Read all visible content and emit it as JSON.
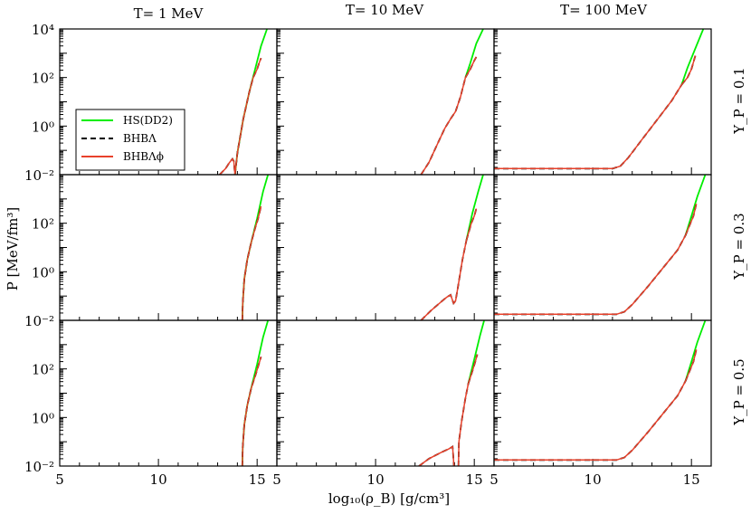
{
  "figure": {
    "xlabel": "log₁₀(ρ_B) [g/cm³]",
    "ylabel": "P [MeV/fm³]"
  },
  "chart_data": {
    "type": "line",
    "layout": "3x3 grid",
    "column_titles": [
      "T= 1 MeV",
      "T= 10 MeV",
      "T= 100 MeV"
    ],
    "row_labels": [
      "Y_P = 0.1",
      "Y_P = 0.3",
      "Y_P = 0.5"
    ],
    "xlim": [
      5,
      16
    ],
    "xticks": [
      5,
      10,
      15
    ],
    "yscale": "log",
    "ylim_log10": [
      -2,
      4
    ],
    "ytick_labels": [
      "10⁻²",
      "10⁰",
      "10²",
      "10⁴"
    ],
    "legend": {
      "placement": "upper-left of top-left panel",
      "entries": [
        {
          "name": "HS(DD2)",
          "color": "#00ee00",
          "dash": "solid"
        },
        {
          "name": "BHBΛ",
          "color": "#000000",
          "dash": "dashed"
        },
        {
          "name": "BHBΛϕ",
          "color": "#e8412b",
          "dash": "solid"
        }
      ]
    },
    "panels": [
      {
        "row": 0,
        "col": 0,
        "title": "T= 1 MeV, Y_P = 0.1",
        "common_log10P": [
          [
            13.1,
            -2.0
          ],
          [
            13.4,
            -1.75
          ],
          [
            13.6,
            -1.5
          ],
          [
            13.75,
            -1.35
          ],
          [
            13.82,
            -1.45
          ],
          [
            13.88,
            -2.0
          ]
        ],
        "hs_log10P": [
          [
            13.88,
            -2.0
          ],
          [
            14.0,
            -1.1
          ],
          [
            14.3,
            0.3
          ],
          [
            14.6,
            1.4
          ],
          [
            14.9,
            2.35
          ],
          [
            15.2,
            3.3
          ],
          [
            15.5,
            4.0
          ]
        ],
        "bhb_log10P": [
          [
            13.88,
            -2.0
          ],
          [
            14.0,
            -1.1
          ],
          [
            14.3,
            0.3
          ],
          [
            14.6,
            1.4
          ],
          [
            14.8,
            2.0
          ],
          [
            15.0,
            2.35
          ],
          [
            15.1,
            2.6
          ],
          [
            15.2,
            2.8
          ]
        ]
      },
      {
        "row": 0,
        "col": 1,
        "title": "T= 10 MeV, Y_P = 0.1",
        "common_log10P": [
          [
            12.3,
            -2.0
          ],
          [
            12.7,
            -1.5
          ],
          [
            13.1,
            -0.8
          ],
          [
            13.5,
            -0.1
          ],
          [
            13.8,
            0.3
          ],
          [
            14.05,
            0.6
          ],
          [
            14.3,
            1.2
          ],
          [
            14.55,
            2.0
          ]
        ],
        "hs_log10P": [
          [
            14.55,
            2.0
          ],
          [
            14.8,
            2.6
          ],
          [
            15.1,
            3.4
          ],
          [
            15.45,
            4.0
          ]
        ],
        "bhb_log10P": [
          [
            14.55,
            2.0
          ],
          [
            14.8,
            2.35
          ],
          [
            15.0,
            2.7
          ],
          [
            15.1,
            2.85
          ]
        ]
      },
      {
        "row": 0,
        "col": 2,
        "title": "T= 100 MeV, Y_P = 0.1",
        "common_log10P": [
          [
            5,
            -1.75
          ],
          [
            11.0,
            -1.75
          ],
          [
            11.4,
            -1.65
          ],
          [
            11.8,
            -1.3
          ],
          [
            12.5,
            -0.55
          ],
          [
            13.3,
            0.3
          ],
          [
            14.0,
            1.05
          ],
          [
            14.5,
            1.7
          ]
        ],
        "hs_log10P": [
          [
            14.5,
            1.7
          ],
          [
            14.8,
            2.4
          ],
          [
            15.2,
            3.2
          ],
          [
            15.6,
            4.0
          ]
        ],
        "bhb_log10P": [
          [
            14.5,
            1.7
          ],
          [
            14.8,
            2.0
          ],
          [
            15.0,
            2.35
          ],
          [
            15.2,
            2.9
          ]
        ]
      },
      {
        "row": 1,
        "col": 0,
        "title": "T= 1 MeV, Y_P = 0.3",
        "common_log10P": [],
        "hs_log10P": [
          [
            14.25,
            -2.0
          ],
          [
            14.27,
            -1.3
          ],
          [
            14.35,
            -0.3
          ],
          [
            14.5,
            0.5
          ],
          [
            14.7,
            1.2
          ],
          [
            15.0,
            2.2
          ],
          [
            15.3,
            3.3
          ],
          [
            15.55,
            4.0
          ]
        ],
        "bhb_log10P": [
          [
            14.25,
            -2.0
          ],
          [
            14.27,
            -1.3
          ],
          [
            14.35,
            -0.3
          ],
          [
            14.5,
            0.5
          ],
          [
            14.7,
            1.2
          ],
          [
            14.9,
            1.8
          ],
          [
            15.05,
            2.2
          ],
          [
            15.2,
            2.7
          ]
        ]
      },
      {
        "row": 1,
        "col": 1,
        "title": "T= 10 MeV, Y_P = 0.3",
        "common_log10P": [
          [
            12.3,
            -2.0
          ],
          [
            12.8,
            -1.6
          ],
          [
            13.3,
            -1.25
          ],
          [
            13.6,
            -1.05
          ],
          [
            13.8,
            -0.95
          ],
          [
            13.95,
            -1.3
          ],
          [
            14.05,
            -1.2
          ],
          [
            14.2,
            -0.5
          ],
          [
            14.4,
            0.5
          ],
          [
            14.6,
            1.3
          ]
        ],
        "hs_log10P": [
          [
            14.6,
            1.3
          ],
          [
            14.9,
            2.4
          ],
          [
            15.2,
            3.3
          ],
          [
            15.45,
            4.0
          ]
        ],
        "bhb_log10P": [
          [
            14.6,
            1.3
          ],
          [
            14.85,
            2.0
          ],
          [
            15.0,
            2.3
          ],
          [
            15.1,
            2.6
          ]
        ]
      },
      {
        "row": 1,
        "col": 2,
        "title": "T= 100 MeV, Y_P = 0.3",
        "common_log10P": [
          [
            5,
            -1.75
          ],
          [
            11.2,
            -1.75
          ],
          [
            11.6,
            -1.65
          ],
          [
            12.0,
            -1.35
          ],
          [
            12.8,
            -0.6
          ],
          [
            13.6,
            0.2
          ],
          [
            14.3,
            0.9
          ],
          [
            14.7,
            1.5
          ]
        ],
        "hs_log10P": [
          [
            14.7,
            1.5
          ],
          [
            15.0,
            2.3
          ],
          [
            15.3,
            3.1
          ],
          [
            15.7,
            4.0
          ]
        ],
        "bhb_log10P": [
          [
            14.7,
            1.5
          ],
          [
            14.9,
            1.9
          ],
          [
            15.1,
            2.3
          ],
          [
            15.25,
            2.8
          ]
        ]
      },
      {
        "row": 2,
        "col": 0,
        "title": "T= 1 MeV, Y_P = 0.5",
        "common_log10P": [],
        "hs_log10P": [
          [
            14.25,
            -2.0
          ],
          [
            14.27,
            -1.2
          ],
          [
            14.35,
            -0.3
          ],
          [
            14.5,
            0.5
          ],
          [
            14.7,
            1.2
          ],
          [
            15.0,
            2.2
          ],
          [
            15.3,
            3.3
          ],
          [
            15.55,
            4.0
          ]
        ],
        "bhb_log10P": [
          [
            14.25,
            -2.0
          ],
          [
            14.27,
            -1.2
          ],
          [
            14.35,
            -0.3
          ],
          [
            14.5,
            0.5
          ],
          [
            14.7,
            1.2
          ],
          [
            14.9,
            1.7
          ],
          [
            15.05,
            2.1
          ],
          [
            15.2,
            2.5
          ]
        ]
      },
      {
        "row": 2,
        "col": 1,
        "title": "T= 10 MeV, Y_P = 0.5",
        "common_log10P": [
          [
            12.2,
            -2.0
          ],
          [
            12.7,
            -1.7
          ],
          [
            13.3,
            -1.45
          ],
          [
            13.7,
            -1.3
          ],
          [
            13.9,
            -1.2
          ],
          [
            13.97,
            -2.0
          ],
          [
            null,
            null
          ],
          [
            14.2,
            -2.0
          ],
          [
            14.22,
            -1.0
          ],
          [
            14.35,
            -0.2
          ],
          [
            14.55,
            0.8
          ],
          [
            14.7,
            1.4
          ]
        ],
        "hs_log10P": [
          [
            14.7,
            1.4
          ],
          [
            15.0,
            2.4
          ],
          [
            15.3,
            3.4
          ],
          [
            15.5,
            4.0
          ]
        ],
        "bhb_log10P": [
          [
            14.7,
            1.4
          ],
          [
            14.9,
            1.9
          ],
          [
            15.05,
            2.3
          ],
          [
            15.15,
            2.6
          ]
        ]
      },
      {
        "row": 2,
        "col": 2,
        "title": "T= 100 MeV, Y_P = 0.5",
        "common_log10P": [
          [
            5,
            -1.75
          ],
          [
            11.2,
            -1.75
          ],
          [
            11.6,
            -1.65
          ],
          [
            12.0,
            -1.35
          ],
          [
            12.8,
            -0.6
          ],
          [
            13.6,
            0.2
          ],
          [
            14.3,
            0.9
          ],
          [
            14.7,
            1.5
          ]
        ],
        "hs_log10P": [
          [
            14.7,
            1.5
          ],
          [
            15.0,
            2.3
          ],
          [
            15.3,
            3.1
          ],
          [
            15.7,
            4.0
          ]
        ],
        "bhb_log10P": [
          [
            14.7,
            1.5
          ],
          [
            14.9,
            1.9
          ],
          [
            15.1,
            2.3
          ],
          [
            15.25,
            2.8
          ]
        ]
      }
    ]
  }
}
